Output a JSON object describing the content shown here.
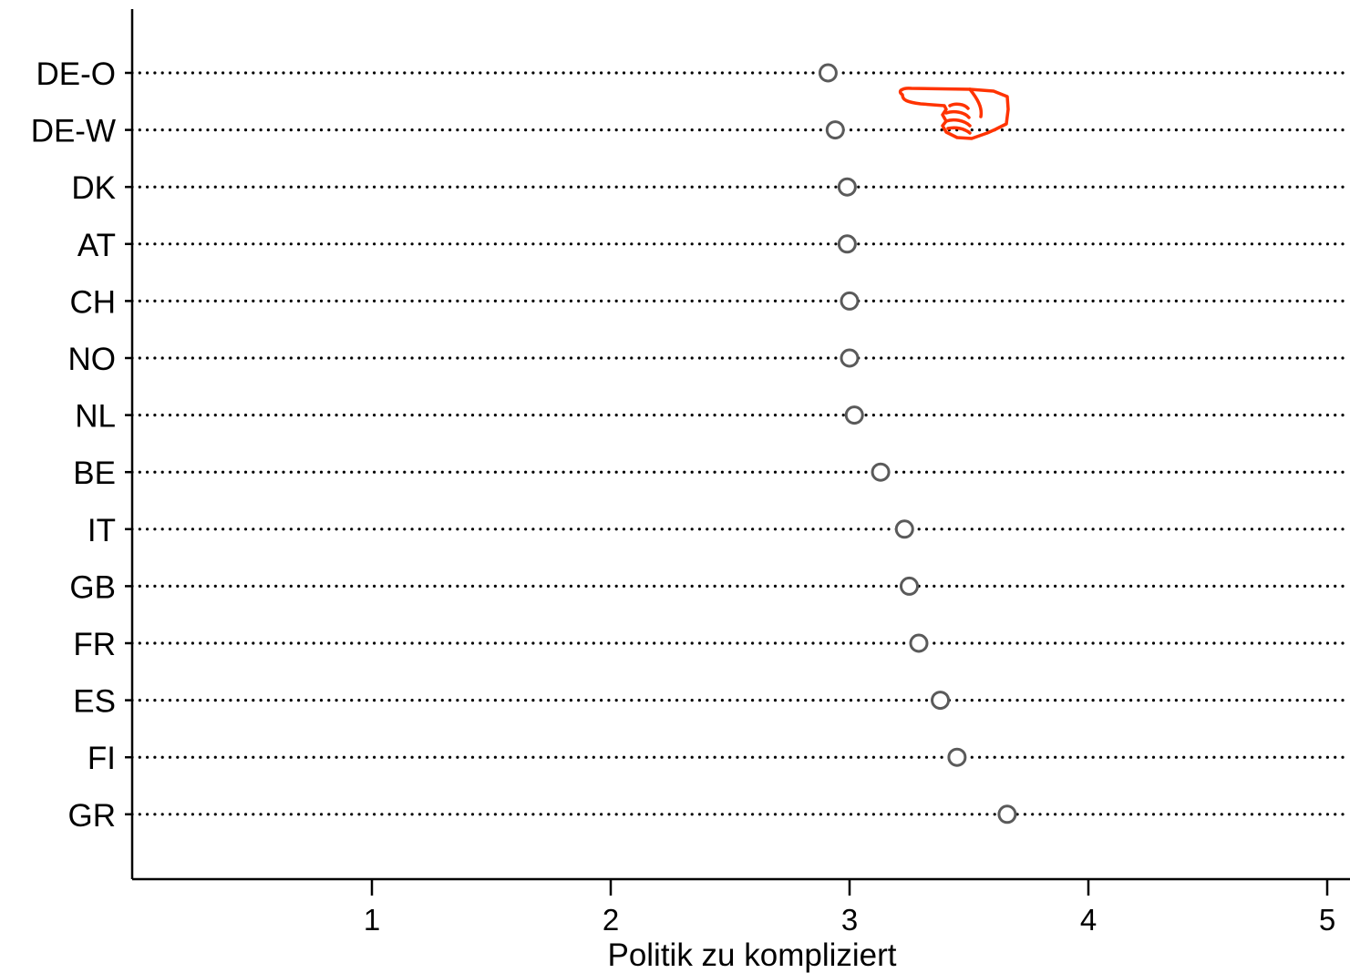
{
  "chart_data": {
    "type": "scatter",
    "title": "",
    "xlabel": "Politik zu kompliziert",
    "ylabel": "",
    "xlim": [
      0,
      5.02
    ],
    "x_ticks": [
      "1",
      "2",
      "3",
      "4",
      "5"
    ],
    "grid": "dotted horizontal guide line for each category",
    "legend": "none",
    "categories": [
      "DE-O",
      "DE-W",
      "DK",
      "AT",
      "CH",
      "NO",
      "NL",
      "BE",
      "IT",
      "GB",
      "FR",
      "ES",
      "FI",
      "GR"
    ],
    "series": [
      {
        "values": [
          2.91,
          2.94,
          2.99,
          2.99,
          3.0,
          3.0,
          3.02,
          3.13,
          3.23,
          3.25,
          3.29,
          3.38,
          3.45,
          3.66
        ]
      }
    ],
    "annotations": [
      {
        "type": "pointing-hand-icon",
        "target": "DE-W",
        "color": "#ff3300"
      }
    ],
    "colors": {
      "marker_stroke": "#5a5a5a",
      "guide_dots": "#000000",
      "annotation": "#ff3300"
    }
  }
}
